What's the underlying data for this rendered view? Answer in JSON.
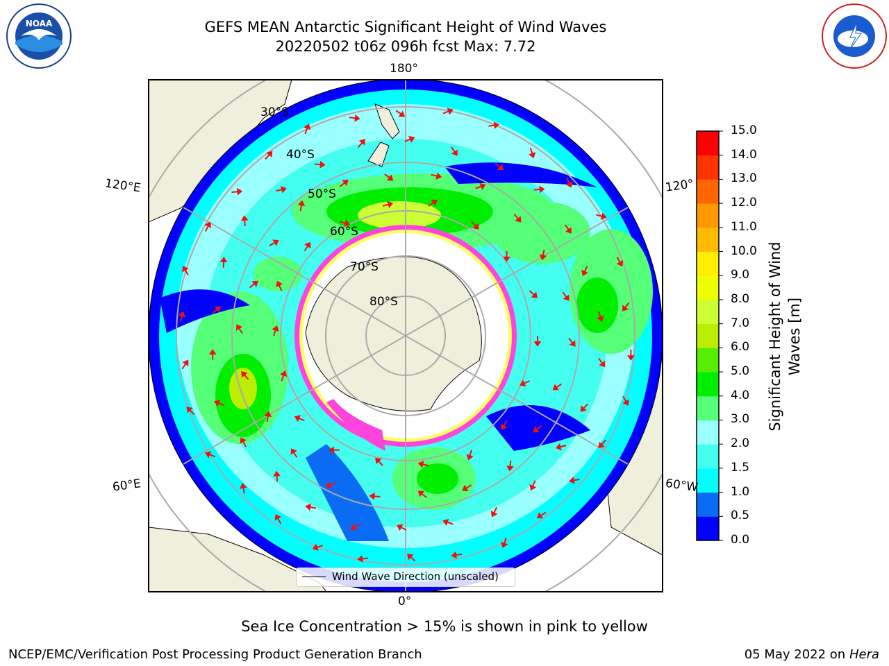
{
  "title": {
    "line1": "GEFS MEAN Antarctic Significant Height of Wind Waves",
    "line2": "20220502 t06z 096h fcst   Max: 7.72"
  },
  "map": {
    "projection": "south-polar-stereographic",
    "longitude_labels": [
      "180°",
      "120°E",
      "120°",
      "60°E",
      "60°W",
      "0°"
    ],
    "latitude_labels": [
      "30°S",
      "40°S",
      "50°S",
      "60°S",
      "70°S",
      "80°S"
    ],
    "legend_label": "Wind Wave Direction (unscaled)",
    "arrow_color": "#ee1111",
    "land_color": "#efefdc",
    "sea_ice_colors": [
      "#ff44dd",
      "#ffff66"
    ]
  },
  "colorbar": {
    "title": "Significant Height of Wind Waves [m]",
    "ticks": [
      "0.0",
      "0.5",
      "1.0",
      "1.5",
      "2.0",
      "3.0",
      "4.0",
      "5.0",
      "6.0",
      "7.0",
      "8.0",
      "9.0",
      "10.0",
      "11.0",
      "12.0",
      "13.0",
      "14.0",
      "15.0"
    ],
    "colors": [
      "#0000ff",
      "#0a6cf5",
      "#00ffff",
      "#44fff0",
      "#99ffff",
      "#55ff77",
      "#00ee00",
      "#55ee00",
      "#bbee00",
      "#ccff33",
      "#eeff00",
      "#ffee00",
      "#ffbb00",
      "#ff9900",
      "#ff6600",
      "#ff3300",
      "#ff0000"
    ]
  },
  "caption": "Sea Ice Concentration > 15% is shown in pink to yellow",
  "footer": {
    "left": "NCEP/EMC/Verification Post Processing Product Generation Branch",
    "date": "05 May 2022 on",
    "host": "Hera"
  },
  "logos": {
    "noaa_text": "NOAA",
    "nws_text": "NATIONAL WEATHER SERVICE"
  }
}
